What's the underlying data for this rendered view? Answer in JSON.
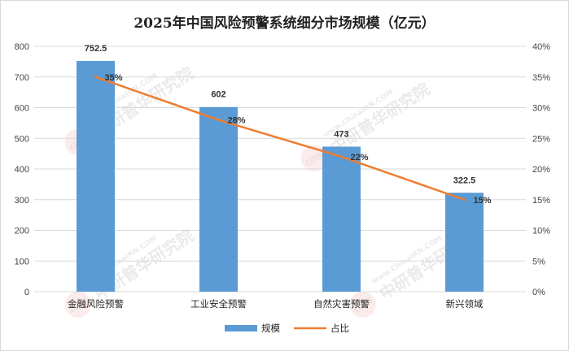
{
  "chart_data": {
    "type": "bar",
    "title": "2025年中国风险预警系统细分市场规模（亿元）",
    "categories": [
      "金融风险预警",
      "工业安全预警",
      "自然灾害预警",
      "新兴领域"
    ],
    "series": [
      {
        "name": "规模",
        "type": "bar",
        "axis": "left",
        "values": [
          752.5,
          602,
          473,
          322.5
        ],
        "labels": [
          "752.5",
          "602",
          "473",
          "322.5"
        ],
        "color": "#5b9bd5"
      },
      {
        "name": "占比",
        "type": "line",
        "axis": "right",
        "values": [
          0.35,
          0.28,
          0.22,
          0.15
        ],
        "labels": [
          "35%",
          "28%",
          "22%",
          "15%"
        ],
        "color": "#ed7d31"
      }
    ],
    "y_left": {
      "min": 0,
      "max": 800,
      "step": 100,
      "ticks": [
        "0",
        "100",
        "200",
        "300",
        "400",
        "500",
        "600",
        "700",
        "800"
      ]
    },
    "y_right": {
      "min": 0,
      "max": 0.4,
      "step": 0.05,
      "ticks": [
        "0%",
        "5%",
        "10%",
        "15%",
        "20%",
        "25%",
        "30%",
        "35%",
        "40%"
      ]
    },
    "grid": true,
    "legend_position": "bottom"
  },
  "watermark": {
    "url_text": "www.ChinaIRN.COM",
    "cn_text": "中研普华研究院",
    "logo_text": "CIRN"
  }
}
